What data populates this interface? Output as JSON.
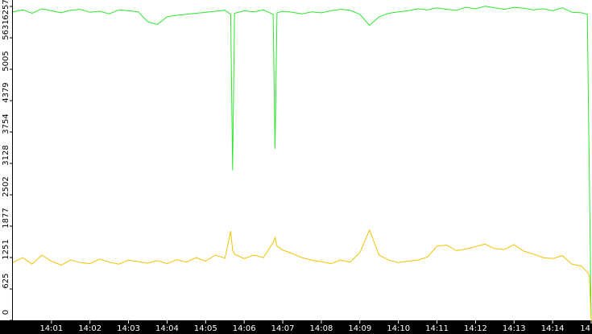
{
  "chart_data": {
    "type": "line",
    "x": [
      0,
      0.25,
      0.5,
      0.75,
      1,
      1.25,
      1.5,
      1.75,
      2,
      2.25,
      2.5,
      2.75,
      3,
      3.25,
      3.5,
      3.75,
      4,
      4.25,
      4.5,
      4.75,
      5,
      5.25,
      5.5,
      5.65,
      5.7,
      5.75,
      6,
      6.25,
      6.5,
      6.75,
      6.8,
      6.85,
      7,
      7.25,
      7.5,
      7.75,
      8,
      8.25,
      8.5,
      8.75,
      9,
      9.25,
      9.5,
      9.75,
      10,
      10.25,
      10.5,
      10.75,
      11,
      11.25,
      11.5,
      11.75,
      12,
      12.25,
      12.5,
      12.75,
      13,
      13.25,
      13.5,
      13.75,
      14,
      14.25,
      14.5,
      14.75,
      14.9,
      14.95,
      15
    ],
    "series": [
      {
        "color": "#2ee62e",
        "values": [
          6150,
          6190,
          6120,
          6210,
          6170,
          6130,
          6180,
          6200,
          6140,
          6160,
          6110,
          6190,
          6170,
          6150,
          5950,
          5900,
          6050,
          6080,
          6100,
          6120,
          6140,
          6160,
          6180,
          6100,
          2990,
          6120,
          6170,
          6150,
          6190,
          6100,
          3420,
          6130,
          6160,
          6140,
          6110,
          6150,
          6130,
          6170,
          6200,
          6180,
          6100,
          5880,
          6050,
          6120,
          6150,
          6170,
          6210,
          6190,
          6230,
          6200,
          6180,
          6240,
          6210,
          6260,
          6230,
          6200,
          6240,
          6220,
          6190,
          6210,
          6170,
          6230,
          6140,
          6130,
          6100,
          3000,
          0
        ]
      },
      {
        "color": "#f2c200",
        "values": [
          1150,
          1250,
          1120,
          1300,
          1180,
          1100,
          1200,
          1150,
          1130,
          1220,
          1160,
          1120,
          1200,
          1170,
          1140,
          1190,
          1130,
          1210,
          1160,
          1250,
          1180,
          1300,
          1240,
          1780,
          1400,
          1320,
          1230,
          1300,
          1250,
          1550,
          1650,
          1480,
          1400,
          1330,
          1250,
          1200,
          1170,
          1130,
          1200,
          1160,
          1350,
          1800,
          1300,
          1200,
          1150,
          1180,
          1200,
          1260,
          1480,
          1500,
          1390,
          1420,
          1470,
          1520,
          1430,
          1410,
          1510,
          1380,
          1320,
          1250,
          1230,
          1290,
          1120,
          1080,
          960,
          900,
          0
        ]
      }
    ],
    "xlim": [
      0,
      15
    ],
    "xticks": [
      {
        "value": 1,
        "label": "14:01"
      },
      {
        "value": 2,
        "label": "14:02"
      },
      {
        "value": 3,
        "label": "14:03"
      },
      {
        "value": 4,
        "label": "14:04"
      },
      {
        "value": 5,
        "label": "14:05"
      },
      {
        "value": 6,
        "label": "14:06"
      },
      {
        "value": 7,
        "label": "14:07"
      },
      {
        "value": 8,
        "label": "14:08"
      },
      {
        "value": 9,
        "label": "14:09"
      },
      {
        "value": 10,
        "label": "14:10"
      },
      {
        "value": 11,
        "label": "14:11"
      },
      {
        "value": 12,
        "label": "14:12"
      },
      {
        "value": 13,
        "label": "14:13"
      },
      {
        "value": 14,
        "label": "14:14"
      },
      {
        "value": 15,
        "label": "14"
      }
    ],
    "ylim": [
      0,
      6257
    ],
    "yticks": [
      0,
      625,
      1251,
      1877,
      2502,
      3128,
      3754,
      4379,
      5005,
      5631,
      6257
    ]
  }
}
